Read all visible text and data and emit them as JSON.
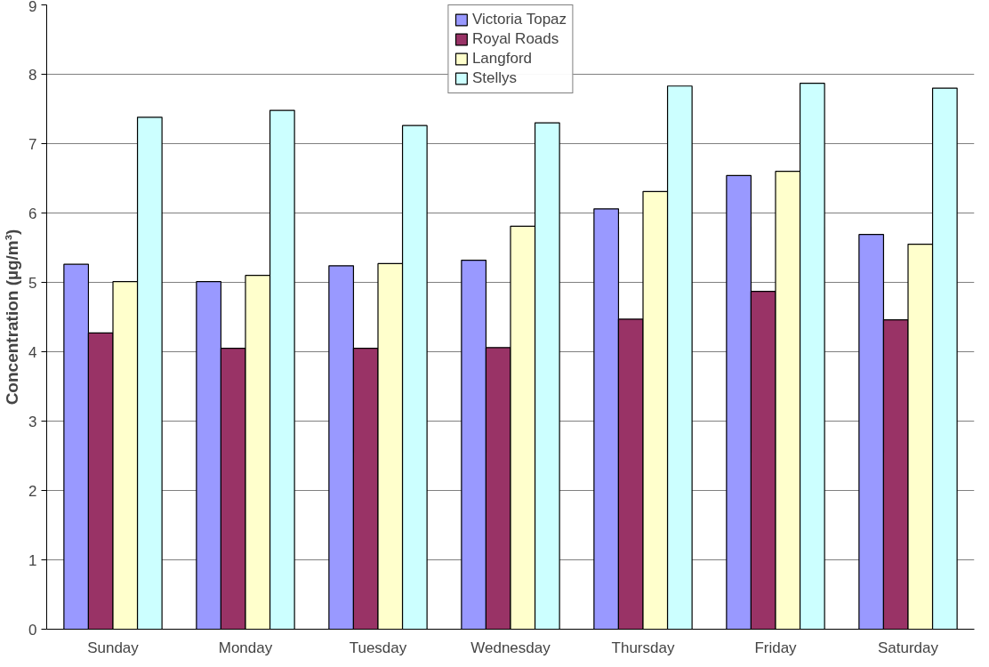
{
  "chart_data": {
    "type": "bar",
    "ylabel": "Concentration (µg/m³)",
    "categories": [
      "Sunday",
      "Monday",
      "Tuesday",
      "Wednesday",
      "Thursday",
      "Friday",
      "Saturday"
    ],
    "series": [
      {
        "name": "Victoria Topaz",
        "color": "#9999ff",
        "values": [
          5.26,
          5.01,
          5.24,
          5.32,
          6.06,
          6.54,
          5.69
        ]
      },
      {
        "name": "Royal Roads",
        "color": "#993366",
        "values": [
          4.27,
          4.05,
          4.05,
          4.06,
          4.47,
          4.87,
          4.46
        ]
      },
      {
        "name": "Langford",
        "color": "#ffffcc",
        "values": [
          5.01,
          5.1,
          5.27,
          5.81,
          6.31,
          6.6,
          5.55
        ]
      },
      {
        "name": "Stellys",
        "color": "#ccffff",
        "values": [
          7.38,
          7.48,
          7.26,
          7.3,
          7.83,
          7.87,
          7.8
        ]
      }
    ],
    "ylim": [
      0,
      9
    ],
    "yticks": [
      0,
      1,
      2,
      3,
      4,
      5,
      6,
      7,
      8,
      9
    ],
    "grid": "y",
    "legend": "top"
  }
}
